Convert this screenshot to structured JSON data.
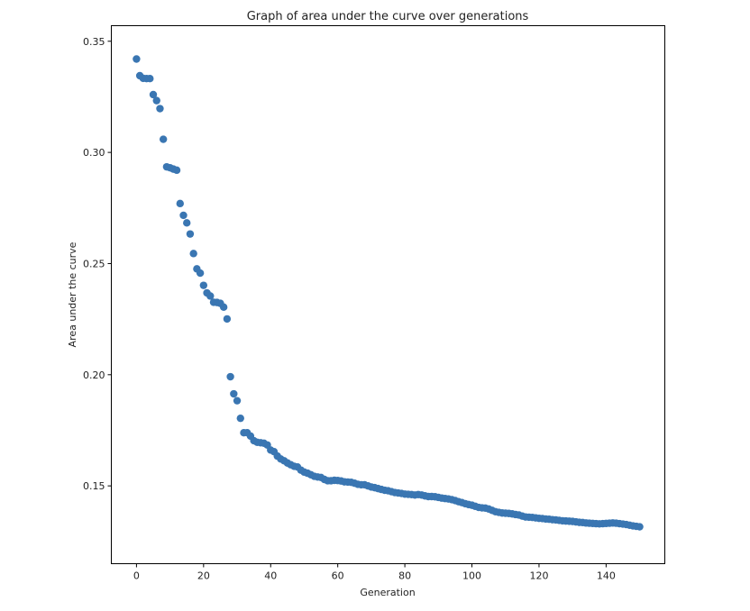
{
  "chart_data": {
    "type": "scatter",
    "title": "Graph of area under the curve over generations",
    "xlabel": "Generation",
    "ylabel": "Area under the curve",
    "xlim": [
      -7.5,
      157.5
    ],
    "ylim": [
      0.115,
      0.357
    ],
    "xticks": [
      0,
      20,
      40,
      60,
      80,
      100,
      120,
      140
    ],
    "yticks": [
      0.15,
      0.2,
      0.25,
      0.3,
      0.35
    ],
    "grid": false,
    "legend": "none",
    "marker_color": "#3a76b2",
    "series": [
      {
        "x": [
          0,
          1,
          2,
          3,
          4,
          5,
          6,
          7,
          8,
          9,
          10,
          11,
          12,
          13,
          14,
          15,
          16,
          17,
          18,
          19,
          20,
          21,
          22,
          23,
          24,
          25,
          26,
          27,
          28,
          29,
          30,
          31,
          32,
          33,
          34,
          35,
          36,
          37,
          38,
          39,
          40,
          41,
          42,
          43,
          44,
          45,
          46,
          47,
          48,
          49,
          50,
          51,
          52,
          53,
          54,
          55,
          56,
          57,
          58,
          59,
          60,
          61,
          62,
          63,
          64,
          65,
          66,
          67,
          68,
          69,
          70,
          71,
          72,
          73,
          74,
          75,
          76,
          77,
          78,
          79,
          80,
          81,
          82,
          83,
          84,
          85,
          86,
          87,
          88,
          89,
          90,
          91,
          92,
          93,
          94,
          95,
          96,
          97,
          98,
          99,
          100,
          101,
          102,
          103,
          104,
          105,
          106,
          107,
          108,
          109,
          110,
          111,
          112,
          113,
          114,
          115,
          116,
          117,
          118,
          119,
          120,
          121,
          122,
          123,
          124,
          125,
          126,
          127,
          128,
          129,
          130,
          131,
          132,
          133,
          134,
          135,
          136,
          137,
          138,
          139,
          140,
          141,
          142,
          143,
          144,
          145,
          146,
          147,
          148,
          149,
          150
        ],
        "y": [
          0.342,
          0.3345,
          0.3333,
          0.3332,
          0.3332,
          0.326,
          0.3233,
          0.3197,
          0.3059,
          0.2935,
          0.2931,
          0.2925,
          0.292,
          0.277,
          0.2717,
          0.2683,
          0.2633,
          0.2545,
          0.2476,
          0.2457,
          0.2402,
          0.2368,
          0.2354,
          0.2326,
          0.2325,
          0.2321,
          0.2304,
          0.2251,
          0.1991,
          0.1914,
          0.1883,
          0.1804,
          0.1739,
          0.1739,
          0.1724,
          0.1703,
          0.1696,
          0.1694,
          0.1692,
          0.1684,
          0.1661,
          0.1654,
          0.1634,
          0.1621,
          0.1613,
          0.1603,
          0.1595,
          0.1588,
          0.1585,
          0.1571,
          0.1562,
          0.1557,
          0.155,
          0.1543,
          0.154,
          0.1538,
          0.1529,
          0.1523,
          0.1523,
          0.1525,
          0.1524,
          0.1522,
          0.1518,
          0.1517,
          0.1516,
          0.1512,
          0.1507,
          0.1505,
          0.1505,
          0.15,
          0.1495,
          0.1492,
          0.1488,
          0.1484,
          0.148,
          0.1478,
          0.1474,
          0.147,
          0.1468,
          0.1466,
          0.1463,
          0.1462,
          0.1461,
          0.1459,
          0.1461,
          0.1459,
          0.1455,
          0.1452,
          0.1452,
          0.1451,
          0.1448,
          0.1445,
          0.1443,
          0.1441,
          0.1438,
          0.1434,
          0.1429,
          0.1425,
          0.142,
          0.1416,
          0.1413,
          0.1408,
          0.1403,
          0.1401,
          0.14,
          0.1396,
          0.139,
          0.1384,
          0.1381,
          0.1378,
          0.1377,
          0.1376,
          0.1374,
          0.1371,
          0.1369,
          0.1364,
          0.136,
          0.1359,
          0.1358,
          0.1356,
          0.1354,
          0.1353,
          0.1351,
          0.135,
          0.1348,
          0.1347,
          0.1345,
          0.1343,
          0.1342,
          0.1341,
          0.134,
          0.1338,
          0.1336,
          0.1335,
          0.1333,
          0.1332,
          0.1331,
          0.133,
          0.1329,
          0.133,
          0.1331,
          0.1332,
          0.1333,
          0.1332,
          0.133,
          0.1328,
          0.1326,
          0.1323,
          0.132,
          0.1318,
          0.1316
        ]
      }
    ]
  }
}
